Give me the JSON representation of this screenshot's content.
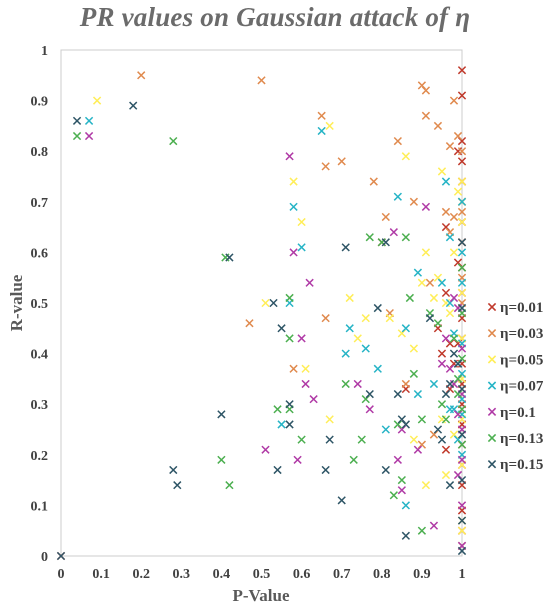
{
  "chart_data": {
    "type": "scatter",
    "title": "PR values on Gaussian attack of η",
    "xlabel": "P-Value",
    "ylabel": "R-value",
    "xlim": [
      0,
      1
    ],
    "ylim": [
      0,
      1
    ],
    "xticks": [
      "0",
      "0.1",
      "0.2",
      "0.3",
      "0.4",
      "0.5",
      "0.6",
      "0.7",
      "0.8",
      "0.9",
      "1"
    ],
    "yticks": [
      "0",
      "0.1",
      "0.2",
      "0.3",
      "0.4",
      "0.5",
      "0.6",
      "0.7",
      "0.8",
      "0.9",
      "1"
    ],
    "grid": false,
    "legend_position": "right",
    "marker": "x",
    "series": [
      {
        "name": "η=0.01",
        "color": "#c0392b",
        "points": [
          [
            1,
            0.96
          ],
          [
            1,
            0.91
          ],
          [
            1,
            0.82
          ],
          [
            1,
            0.78
          ],
          [
            1,
            0.74
          ],
          [
            1,
            0.7
          ],
          [
            1,
            0.66
          ],
          [
            1,
            0.62
          ],
          [
            1,
            0.57
          ],
          [
            1,
            0.52
          ],
          [
            1,
            0.47
          ],
          [
            1,
            0.43
          ],
          [
            1,
            0.38
          ],
          [
            1,
            0.34
          ],
          [
            1,
            0.3
          ],
          [
            1,
            0.26
          ],
          [
            1,
            0.22
          ],
          [
            1,
            0.18
          ],
          [
            1,
            0.14
          ],
          [
            1,
            0.09
          ],
          [
            1,
            0.05
          ],
          [
            1,
            0.02
          ],
          [
            0.99,
            0.8
          ],
          [
            0.99,
            0.58
          ],
          [
            0.99,
            0.42
          ],
          [
            0.98,
            0.38
          ],
          [
            0.97,
            0.33
          ],
          [
            0.97,
            0.42
          ],
          [
            0.96,
            0.21
          ],
          [
            0.96,
            0.65
          ],
          [
            0.96,
            0.52
          ],
          [
            0.95,
            0.4
          ],
          [
            0.94,
            0.45
          ],
          [
            0.86,
            0.33
          ],
          [
            0.8,
            0.62
          ],
          [
            0,
            0
          ]
        ]
      },
      {
        "name": "η=0.03",
        "color": "#e08a4e",
        "points": [
          [
            0.2,
            0.95
          ],
          [
            0.5,
            0.94
          ],
          [
            0.65,
            0.87
          ],
          [
            0.66,
            0.77
          ],
          [
            0.7,
            0.78
          ],
          [
            0.78,
            0.74
          ],
          [
            0.81,
            0.67
          ],
          [
            0.84,
            0.82
          ],
          [
            0.88,
            0.7
          ],
          [
            0.9,
            0.93
          ],
          [
            0.91,
            0.92
          ],
          [
            0.91,
            0.87
          ],
          [
            0.94,
            0.85
          ],
          [
            0.97,
            0.81
          ],
          [
            0.98,
            0.9
          ],
          [
            0.99,
            0.83
          ],
          [
            1,
            0.8
          ],
          [
            1,
            0.74
          ],
          [
            1,
            0.68
          ],
          [
            1,
            0.62
          ],
          [
            1,
            0.55
          ],
          [
            1,
            0.5
          ],
          [
            0.98,
            0.67
          ],
          [
            0.47,
            0.46
          ],
          [
            0.58,
            0.37
          ],
          [
            0.66,
            0.47
          ],
          [
            0.82,
            0.48
          ],
          [
            0.86,
            0.34
          ],
          [
            0.9,
            0.22
          ],
          [
            0.92,
            0.54
          ],
          [
            0.93,
            0.24
          ],
          [
            0.96,
            0.68
          ],
          [
            0.97,
            0.64
          ]
        ]
      },
      {
        "name": "η=0.05",
        "color": "#ffee58",
        "points": [
          [
            0.09,
            0.9
          ],
          [
            0.51,
            0.5
          ],
          [
            0.58,
            0.74
          ],
          [
            0.6,
            0.66
          ],
          [
            0.67,
            0.85
          ],
          [
            0.72,
            0.51
          ],
          [
            0.74,
            0.43
          ],
          [
            0.76,
            0.47
          ],
          [
            0.82,
            0.47
          ],
          [
            0.85,
            0.44
          ],
          [
            0.86,
            0.79
          ],
          [
            0.88,
            0.41
          ],
          [
            0.9,
            0.54
          ],
          [
            0.91,
            0.6
          ],
          [
            0.93,
            0.51
          ],
          [
            0.94,
            0.55
          ],
          [
            0.95,
            0.76
          ],
          [
            0.96,
            0.5
          ],
          [
            0.97,
            0.48
          ],
          [
            0.98,
            0.6
          ],
          [
            0.98,
            0.24
          ],
          [
            0.99,
            0.72
          ],
          [
            1,
            0.74
          ],
          [
            1,
            0.7
          ],
          [
            1,
            0.66
          ],
          [
            1,
            0.52
          ],
          [
            1,
            0.43
          ],
          [
            1,
            0.35
          ],
          [
            1,
            0.27
          ],
          [
            1,
            0.18
          ],
          [
            1,
            0.07
          ],
          [
            1,
            0.05
          ],
          [
            0.61,
            0.37
          ],
          [
            0.67,
            0.27
          ],
          [
            0.88,
            0.23
          ],
          [
            0.91,
            0.14
          ],
          [
            0.95,
            0.27
          ],
          [
            0.96,
            0.16
          ]
        ]
      },
      {
        "name": "η=0.07",
        "color": "#26b4c6",
        "points": [
          [
            0.07,
            0.86
          ],
          [
            0.57,
            0.5
          ],
          [
            0.58,
            0.69
          ],
          [
            0.6,
            0.61
          ],
          [
            0.65,
            0.84
          ],
          [
            0.71,
            0.4
          ],
          [
            0.72,
            0.45
          ],
          [
            0.76,
            0.41
          ],
          [
            0.79,
            0.37
          ],
          [
            0.84,
            0.71
          ],
          [
            0.86,
            0.45
          ],
          [
            0.89,
            0.56
          ],
          [
            0.89,
            0.32
          ],
          [
            0.93,
            0.34
          ],
          [
            0.95,
            0.54
          ],
          [
            0.96,
            0.74
          ],
          [
            0.97,
            0.63
          ],
          [
            0.97,
            0.5
          ],
          [
            0.98,
            0.44
          ],
          [
            0.99,
            0.38
          ],
          [
            0.99,
            0.23
          ],
          [
            1,
            0.7
          ],
          [
            1,
            0.6
          ],
          [
            1,
            0.54
          ],
          [
            1,
            0.42
          ],
          [
            1,
            0.36
          ],
          [
            1,
            0.31
          ],
          [
            1,
            0.28
          ],
          [
            1,
            0.2
          ],
          [
            0.55,
            0.26
          ],
          [
            0.81,
            0.25
          ],
          [
            0.86,
            0.1
          ],
          [
            0.97,
            0.29
          ],
          [
            0.98,
            0.29
          ]
        ]
      },
      {
        "name": "η=0.1",
        "color": "#b03aa6",
        "points": [
          [
            0.07,
            0.83
          ],
          [
            0.57,
            0.79
          ],
          [
            0.58,
            0.6
          ],
          [
            0.62,
            0.54
          ],
          [
            0.6,
            0.43
          ],
          [
            0.61,
            0.34
          ],
          [
            0.63,
            0.31
          ],
          [
            0.51,
            0.21
          ],
          [
            0.59,
            0.19
          ],
          [
            0.74,
            0.34
          ],
          [
            0.77,
            0.29
          ],
          [
            0.84,
            0.19
          ],
          [
            0.85,
            0.13
          ],
          [
            0.85,
            0.25
          ],
          [
            0.89,
            0.21
          ],
          [
            0.91,
            0.69
          ],
          [
            0.93,
            0.06
          ],
          [
            0.95,
            0.38
          ],
          [
            0.96,
            0.43
          ],
          [
            0.97,
            0.37
          ],
          [
            0.98,
            0.34
          ],
          [
            0.98,
            0.51
          ],
          [
            0.99,
            0.49
          ],
          [
            0.99,
            0.28
          ],
          [
            0.99,
            0.16
          ],
          [
            1,
            0.41
          ],
          [
            1,
            0.32
          ],
          [
            1,
            0.25
          ],
          [
            1,
            0.19
          ],
          [
            1,
            0.1
          ],
          [
            1,
            0.02
          ],
          [
            0.83,
            0.64
          ]
        ]
      },
      {
        "name": "η=0.13",
        "color": "#4caf50",
        "points": [
          [
            0.04,
            0.83
          ],
          [
            0.28,
            0.82
          ],
          [
            0.41,
            0.59
          ],
          [
            0.4,
            0.19
          ],
          [
            0.42,
            0.14
          ],
          [
            0.54,
            0.29
          ],
          [
            0.57,
            0.29
          ],
          [
            0.57,
            0.51
          ],
          [
            0.57,
            0.43
          ],
          [
            0.6,
            0.23
          ],
          [
            0.71,
            0.34
          ],
          [
            0.73,
            0.19
          ],
          [
            0.75,
            0.23
          ],
          [
            0.76,
            0.31
          ],
          [
            0.77,
            0.63
          ],
          [
            0.8,
            0.62
          ],
          [
            0.83,
            0.12
          ],
          [
            0.84,
            0.26
          ],
          [
            0.86,
            0.63
          ],
          [
            0.87,
            0.51
          ],
          [
            0.88,
            0.36
          ],
          [
            0.9,
            0.27
          ],
          [
            0.92,
            0.48
          ],
          [
            0.94,
            0.46
          ],
          [
            0.95,
            0.3
          ],
          [
            0.96,
            0.27
          ],
          [
            0.98,
            0.43
          ],
          [
            0.99,
            0.32
          ],
          [
            1,
            0.57
          ],
          [
            1,
            0.48
          ],
          [
            1,
            0.39
          ],
          [
            1,
            0.29
          ],
          [
            1,
            0.22
          ],
          [
            0.99,
            0.35
          ],
          [
            0.85,
            0.15
          ],
          [
            0.9,
            0.05
          ]
        ]
      },
      {
        "name": "η=0.15",
        "color": "#2e5566",
        "points": [
          [
            0.04,
            0.86
          ],
          [
            0.18,
            0.89
          ],
          [
            0.42,
            0.59
          ],
          [
            0.53,
            0.5
          ],
          [
            0.55,
            0.45
          ],
          [
            0.4,
            0.28
          ],
          [
            0.54,
            0.17
          ],
          [
            0.28,
            0.17
          ],
          [
            0.29,
            0.14
          ],
          [
            0.57,
            0.26
          ],
          [
            0.57,
            0.3
          ],
          [
            0.66,
            0.17
          ],
          [
            0.67,
            0.23
          ],
          [
            0.7,
            0.11
          ],
          [
            0.71,
            0.61
          ],
          [
            0.77,
            0.32
          ],
          [
            0.79,
            0.49
          ],
          [
            0.81,
            0.62
          ],
          [
            0.81,
            0.17
          ],
          [
            0.84,
            0.32
          ],
          [
            0.85,
            0.27
          ],
          [
            0.86,
            0.26
          ],
          [
            0.86,
            0.04
          ],
          [
            0.92,
            0.47
          ],
          [
            0.94,
            0.25
          ],
          [
            0.95,
            0.23
          ],
          [
            0.96,
            0.32
          ],
          [
            0.97,
            0.14
          ],
          [
            0.97,
            0.34
          ],
          [
            0.98,
            0.4
          ],
          [
            0.99,
            0.38
          ],
          [
            1,
            0.62
          ],
          [
            1,
            0.49
          ],
          [
            1,
            0.33
          ],
          [
            1,
            0.24
          ],
          [
            1,
            0.15
          ],
          [
            1,
            0.07
          ],
          [
            1,
            0.01
          ],
          [
            0,
            0
          ]
        ]
      }
    ]
  }
}
